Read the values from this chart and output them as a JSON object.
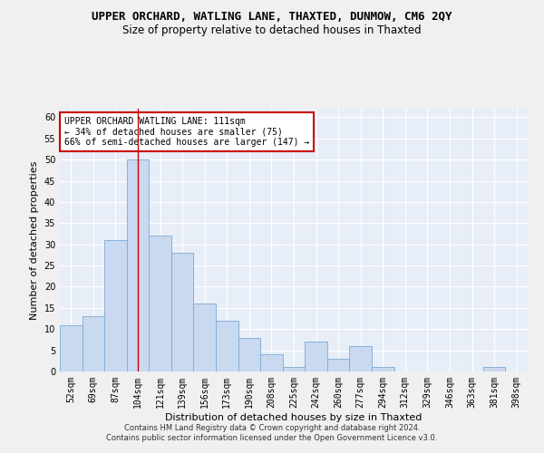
{
  "title": "UPPER ORCHARD, WATLING LANE, THAXTED, DUNMOW, CM6 2QY",
  "subtitle": "Size of property relative to detached houses in Thaxted",
  "xlabel": "Distribution of detached houses by size in Thaxted",
  "ylabel": "Number of detached properties",
  "categories": [
    "52sqm",
    "69sqm",
    "87sqm",
    "104sqm",
    "121sqm",
    "139sqm",
    "156sqm",
    "173sqm",
    "190sqm",
    "208sqm",
    "225sqm",
    "242sqm",
    "260sqm",
    "277sqm",
    "294sqm",
    "312sqm",
    "329sqm",
    "346sqm",
    "363sqm",
    "381sqm",
    "398sqm"
  ],
  "values": [
    11,
    13,
    31,
    50,
    32,
    28,
    16,
    12,
    8,
    4,
    1,
    7,
    3,
    6,
    1,
    0,
    0,
    0,
    0,
    1,
    0
  ],
  "bar_color": "#c9d9f0",
  "bar_edge_color": "#7aaad4",
  "red_line_index": 3,
  "annotation_line1": "UPPER ORCHARD WATLING LANE: 111sqm",
  "annotation_line2": "← 34% of detached houses are smaller (75)",
  "annotation_line3": "66% of semi-detached houses are larger (147) →",
  "annotation_box_color": "#ffffff",
  "annotation_box_edge": "#cc0000",
  "ylim": [
    0,
    62
  ],
  "yticks": [
    0,
    5,
    10,
    15,
    20,
    25,
    30,
    35,
    40,
    45,
    50,
    55,
    60
  ],
  "background_color": "#e8eef8",
  "grid_color": "#ffffff",
  "fig_background": "#f0f0f0",
  "footer": "Contains HM Land Registry data © Crown copyright and database right 2024.\nContains public sector information licensed under the Open Government Licence v3.0.",
  "title_fontsize": 9,
  "subtitle_fontsize": 8.5,
  "xlabel_fontsize": 8,
  "ylabel_fontsize": 8,
  "tick_fontsize": 7,
  "annotation_fontsize": 7,
  "footer_fontsize": 6
}
